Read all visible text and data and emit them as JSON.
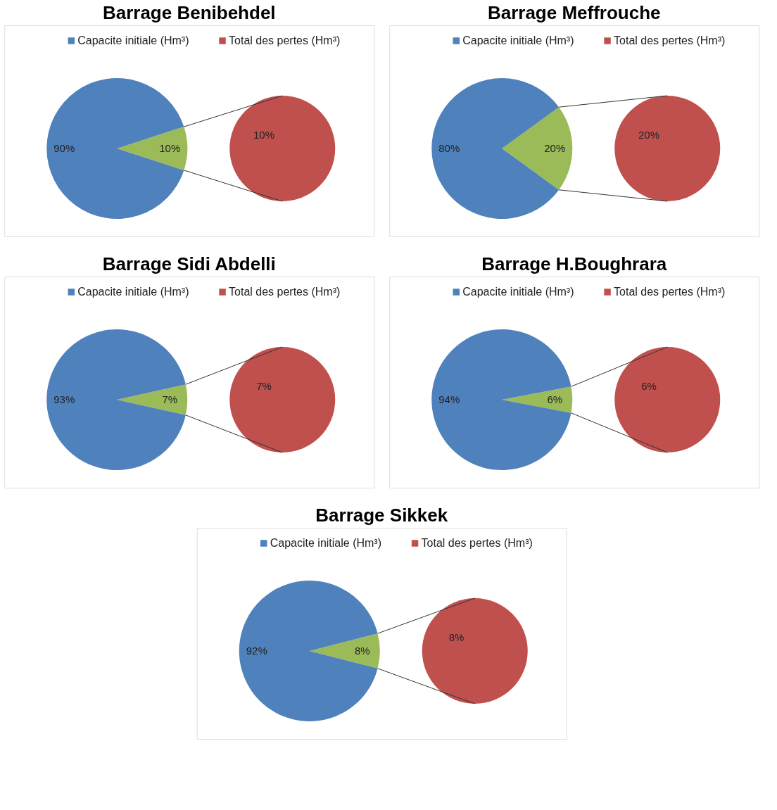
{
  "chart_data": [
    {
      "type": "pie",
      "title": "Barrage Benibehdel",
      "legend": "top",
      "categories": [
        "Capacite initiale (Hm³)",
        "Total des pertes (Hm³)"
      ],
      "series": [
        {
          "values": [
            90,
            10
          ],
          "colors": [
            "#4f81bd",
            "#9bbb59"
          ],
          "value_labels": [
            "90%",
            "10%"
          ]
        },
        {
          "values": [
            null,
            10
          ],
          "colors": [
            null,
            "#c0504d"
          ],
          "value_labels": [
            null,
            "10%"
          ]
        }
      ]
    },
    {
      "type": "pie",
      "title": "Barrage Meffrouche",
      "legend": "top",
      "categories": [
        "Capacite initiale (Hm³)",
        "Total des pertes (Hm³)"
      ],
      "series": [
        {
          "values": [
            80,
            20
          ],
          "colors": [
            "#4f81bd",
            "#9bbb59"
          ],
          "value_labels": [
            "80%",
            "20%"
          ]
        },
        {
          "values": [
            null,
            20
          ],
          "colors": [
            null,
            "#c0504d"
          ],
          "value_labels": [
            null,
            "20%"
          ]
        }
      ]
    },
    {
      "type": "pie",
      "title": "Barrage Sidi Abdelli",
      "legend": "top",
      "categories": [
        "Capacite initiale (Hm³)",
        "Total des pertes (Hm³)"
      ],
      "series": [
        {
          "values": [
            93,
            7
          ],
          "colors": [
            "#4f81bd",
            "#9bbb59"
          ],
          "value_labels": [
            "93%",
            "7%"
          ]
        },
        {
          "values": [
            null,
            7
          ],
          "colors": [
            null,
            "#c0504d"
          ],
          "value_labels": [
            null,
            "7%"
          ]
        }
      ]
    },
    {
      "type": "pie",
      "title": "Barrage H.Boughrara",
      "legend": "top",
      "categories": [
        "Capacite initiale (Hm³)",
        "Total des pertes (Hm³)"
      ],
      "series": [
        {
          "values": [
            94,
            6
          ],
          "colors": [
            "#4f81bd",
            "#9bbb59"
          ],
          "value_labels": [
            "94%",
            "6%"
          ]
        },
        {
          "values": [
            null,
            6
          ],
          "colors": [
            null,
            "#c0504d"
          ],
          "value_labels": [
            null,
            "6%"
          ]
        }
      ]
    },
    {
      "type": "pie",
      "title": "Barrage Sikkek",
      "legend": "top",
      "categories": [
        "Capacite initiale (Hm³)",
        "Total des pertes (Hm³)"
      ],
      "series": [
        {
          "values": [
            92,
            8
          ],
          "colors": [
            "#4f81bd",
            "#9bbb59"
          ],
          "value_labels": [
            "92%",
            "8%"
          ]
        },
        {
          "values": [
            null,
            8
          ],
          "colors": [
            null,
            "#c0504d"
          ],
          "value_labels": [
            null,
            "8%"
          ]
        }
      ]
    }
  ]
}
